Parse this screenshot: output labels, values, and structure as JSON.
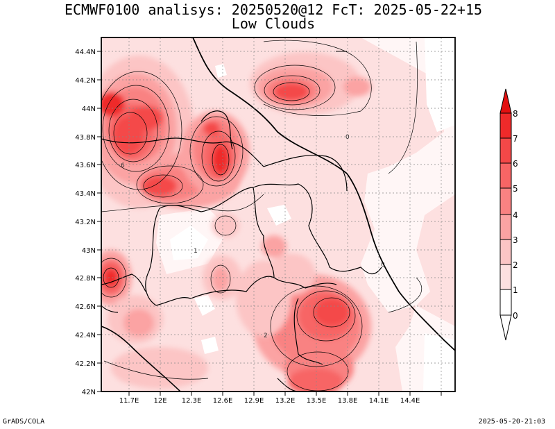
{
  "title": "ECMWF0100 analisys: 20250520@12 FcT: 2025-05-22+15",
  "subtitle": "Low Clouds",
  "footer_left": "GrADS/COLA",
  "footer_right": "2025-05-20-21:03",
  "lat_ticks": [
    "44.4N",
    "44.2N",
    "44N",
    "43.8N",
    "43.6N",
    "43.4N",
    "43.2N",
    "43N",
    "42.8N",
    "42.6N",
    "42.4N",
    "42.2N",
    "42N"
  ],
  "lon_ticks": [
    "11.7E",
    "12E",
    "12.3E",
    "12.6E",
    "12.9E",
    "13.2E",
    "13.5E",
    "13.8E",
    "14.1E",
    "14.4E"
  ],
  "colorbar": {
    "labels": [
      "0",
      "1",
      "2",
      "3",
      "4",
      "5",
      "6",
      "7",
      "8"
    ],
    "colors": [
      "#ffffff",
      "#fde0e0",
      "#fcc5c5",
      "#fba3a3",
      "#f98282",
      "#f76565",
      "#f44848",
      "#ef2a2a",
      "#e31010"
    ]
  },
  "contour_labels": [
    "0",
    "0",
    "1",
    "2",
    "6"
  ]
}
